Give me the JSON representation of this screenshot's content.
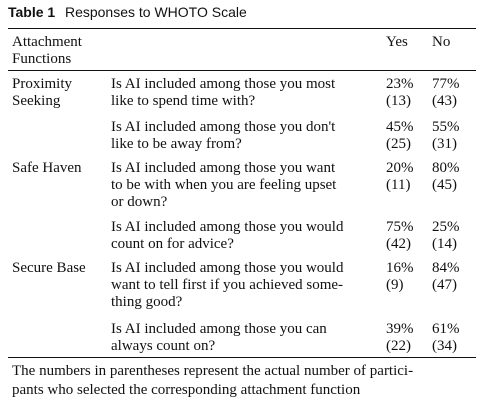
{
  "table": {
    "number": "Table 1",
    "title": "Responses to WHOTO Scale",
    "headers": {
      "function_line1": "Attachment",
      "function_line2": "Functions",
      "yes": "Yes",
      "no": "No"
    },
    "groups": [
      {
        "function_lines": [
          "Proximity",
          "Seeking"
        ],
        "rows": [
          {
            "question_lines": [
              "Is AI included among those you most",
              "like to spend time with?"
            ],
            "yes_pct": "23%",
            "yes_n": "(13)",
            "no_pct": "77%",
            "no_n": "(43)"
          },
          {
            "question_lines": [
              "Is AI included among those you don't",
              "like to be away from?"
            ],
            "yes_pct": "45%",
            "yes_n": "(25)",
            "no_pct": "55%",
            "no_n": "(31)"
          }
        ]
      },
      {
        "function_lines": [
          "Safe Haven"
        ],
        "rows": [
          {
            "question_lines": [
              "Is AI included among those you want",
              "to be with when you are feeling upset",
              "or down?"
            ],
            "yes_pct": "20%",
            "yes_n": "(11)",
            "no_pct": "80%",
            "no_n": "(45)"
          },
          {
            "question_lines": [
              "Is AI included among those you would",
              "count on for advice?"
            ],
            "yes_pct": "75%",
            "yes_n": "(42)",
            "no_pct": "25%",
            "no_n": "(14)"
          }
        ]
      },
      {
        "function_lines": [
          "Secure Base"
        ],
        "rows": [
          {
            "question_lines": [
              "Is AI included among those you would",
              "want to tell first if you achieved some-",
              "thing good?"
            ],
            "yes_pct": "16%",
            "yes_n": "(9)",
            "no_pct": "84%",
            "no_n": "(47)"
          },
          {
            "question_lines": [
              "Is AI included among those you can",
              "always count on?"
            ],
            "yes_pct": "39%",
            "yes_n": "(22)",
            "no_pct": "61%",
            "no_n": "(34)"
          }
        ]
      }
    ],
    "footnote_lines": [
      "The numbers in parentheses represent the actual number of partici-",
      "pants who selected the corresponding attachment function"
    ]
  }
}
